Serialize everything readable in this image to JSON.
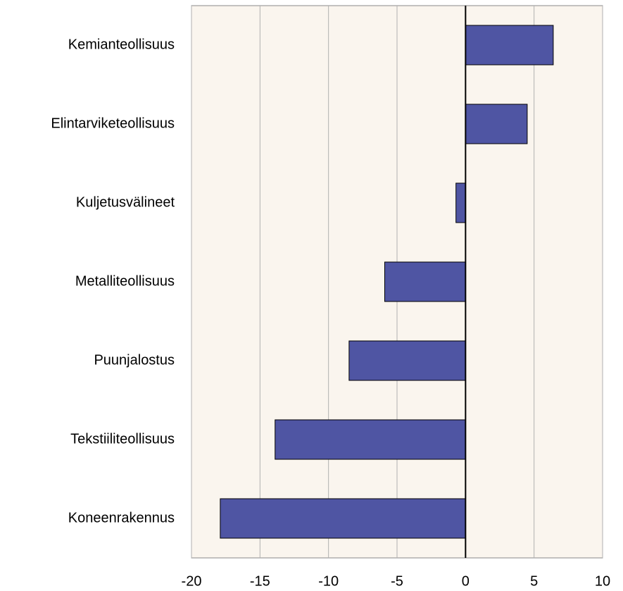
{
  "chart_data": {
    "type": "barh",
    "categories": [
      "Kemianteollisuus",
      "Elintarviketeollisuus",
      "Kuljetusvälineet",
      "Metalliteollisuus",
      "Puunjalostus",
      "Tekstiiliteollisuus",
      "Koneenrakennus"
    ],
    "values": [
      6.4,
      4.5,
      -0.7,
      -5.9,
      -8.5,
      -13.9,
      -17.9
    ],
    "color": "#4f55a3",
    "xlim": [
      -20,
      10
    ],
    "xticks": [
      -20,
      -15,
      -10,
      -5,
      0,
      5,
      10
    ],
    "grid": true
  }
}
